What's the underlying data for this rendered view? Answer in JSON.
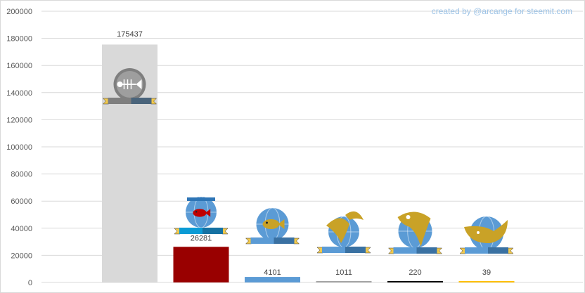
{
  "chart_data": {
    "type": "bar",
    "categories": [
      "Redfish",
      "Minnow",
      "Plankton-fish",
      "Dolphin",
      "Orca",
      "Whale"
    ],
    "category_icons": [
      "dead-fish-icon",
      "fishbowl-icon",
      "fish-icon",
      "dolphin-icon",
      "orca-icon",
      "whale-icon"
    ],
    "values": [
      175437,
      26281,
      4101,
      1011,
      220,
      39
    ],
    "value_labels": [
      "175437",
      "26281",
      "4101",
      "1011",
      "220",
      "39"
    ],
    "bar_colors": [
      "#d9d9d9",
      "#990000",
      "#5b9bd5",
      "#a5a5a5",
      "#000000",
      "#ffc000"
    ],
    "ylim": [
      0,
      200000
    ],
    "yticks": [
      0,
      20000,
      40000,
      60000,
      80000,
      100000,
      120000,
      140000,
      160000,
      180000,
      200000
    ],
    "ytick_labels": [
      "0",
      "20000",
      "40000",
      "60000",
      "80000",
      "100000",
      "120000",
      "140000",
      "160000",
      "180000",
      "200000"
    ],
    "grid": true,
    "legend": "none",
    "credit": "created by @arcange for steemit.com",
    "colors": {
      "grid": "#d9d9d9",
      "axis_text": "#595959",
      "credit": "#9dc3e6",
      "icon_blue": "#5b9bd5",
      "icon_gold": "#c9a227",
      "icon_gray": "#7f7f7f"
    }
  }
}
